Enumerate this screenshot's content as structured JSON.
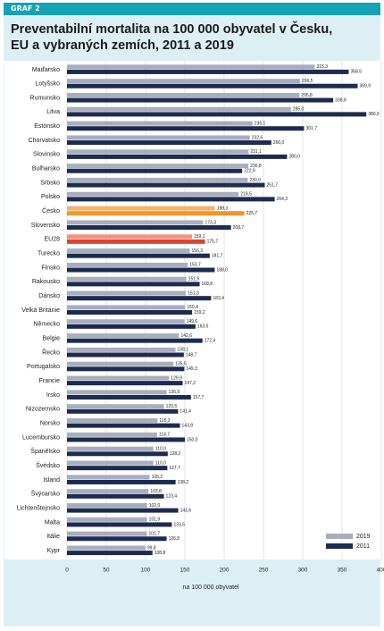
{
  "chart_data": {
    "type": "hbar",
    "label": "GRAF 2",
    "title": "Preventabilní mortalita na 100 000 obyvatel v Česku, EU a vybraných zemích, 2011 a 2019",
    "x_label": "na 100 000 obyvatel",
    "categories": [
      "Maďarsko",
      "Lotyšsko",
      "Rumunsko",
      "Litva",
      "Estonsko",
      "Chorvatsko",
      "Slovinsko",
      "Bulharsko",
      "Srbsko",
      "Polsko",
      "Česko",
      "Slovensko",
      "EU28",
      "Turecko",
      "Finsko",
      "Rakousko",
      "Dánsko",
      "Velká Británie",
      "Německo",
      "Belgie",
      "Řecko",
      "Portugalsko",
      "Francie",
      "Irsko",
      "Nizozemsko",
      "Norsko",
      "Lucembursko",
      "Španělsko",
      "Švédsko",
      "Island",
      "Švýcarsko",
      "Lichtenštejnsko",
      "Malta",
      "Itálie",
      "Kypr"
    ],
    "series": [
      {
        "name": "2019",
        "color": "#a8aebd",
        "point_colors": {
          "10": "#f6b36a",
          "12": "#f2957e"
        },
        "values": [
          315.3,
          296.5,
          295.8,
          285.0,
          236.1,
          232.6,
          231.1,
          230.8,
          230.0,
          218.5,
          188.3,
          173.3,
          159.1,
          156.3,
          153.7,
          151.9,
          151.3,
          150.4,
          149.6,
          142.6,
          138.1,
          135.5,
          129.9,
          126.9,
          123.5,
          115.2,
          114.7,
          110.0,
          110.0,
          105.2,
          103.8,
          102.0,
          101.9,
          101.7,
          99.8
        ],
        "value_labels": [
          "315,3",
          "296,5",
          "295,8",
          "285,0",
          "236,1",
          "232,6",
          "231,1",
          "230,8",
          "230,0",
          "218,5",
          "188,3",
          "173,3",
          "159,1",
          "156,3",
          "153,7",
          "151,9",
          "151,3",
          "150,4",
          "149,6",
          "142,6",
          "138,1",
          "135,5",
          "129,9",
          "126,9",
          "123,5",
          "115,2",
          "114,7",
          "110,0",
          "110,0",
          "105,2",
          "103,8",
          "102,0",
          "101,9",
          "101,7",
          "99,8"
        ]
      },
      {
        "name": "2011",
        "color": "#1c2b4f",
        "point_colors": {
          "10": "#f0952a",
          "12": "#d9452c"
        },
        "values": [
          358.5,
          369.9,
          338.8,
          380.9,
          301.7,
          260.0,
          280.0,
          222.9,
          251.7,
          264.3,
          225.7,
          208.7,
          175.7,
          181.7,
          188.0,
          168.8,
          183.4,
          159.2,
          163.5,
          172.4,
          148.7,
          149.3,
          147.2,
          157.7,
          141.4,
          143.8,
          150.0,
          128.2,
          127.7,
          138.2,
          123.4,
          141.6,
          133.5,
          126.8,
          108.8
        ],
        "value_labels": [
          "358,5",
          "369,9",
          "338,8",
          "380,9",
          "301,7",
          "260,0",
          "280,0",
          "222,9",
          "251,7",
          "264,3",
          "225,7",
          "208,7",
          "175,7",
          "181,7",
          "188,0",
          "168,8",
          "183,4",
          "159,2",
          "163,5",
          "172,4",
          "148,7",
          "149,3",
          "147,2",
          "157,7",
          "141,4",
          "143,8",
          "150,0",
          "128,2",
          "127,7",
          "138,2",
          "123,4",
          "141,6",
          "133,5",
          "126,8",
          "108,8"
        ]
      }
    ],
    "xlim": [
      0,
      400
    ],
    "xticks": [
      0,
      50,
      100,
      150,
      200,
      250,
      300,
      350,
      400
    ],
    "grid": true,
    "legend": "bottom-right"
  }
}
